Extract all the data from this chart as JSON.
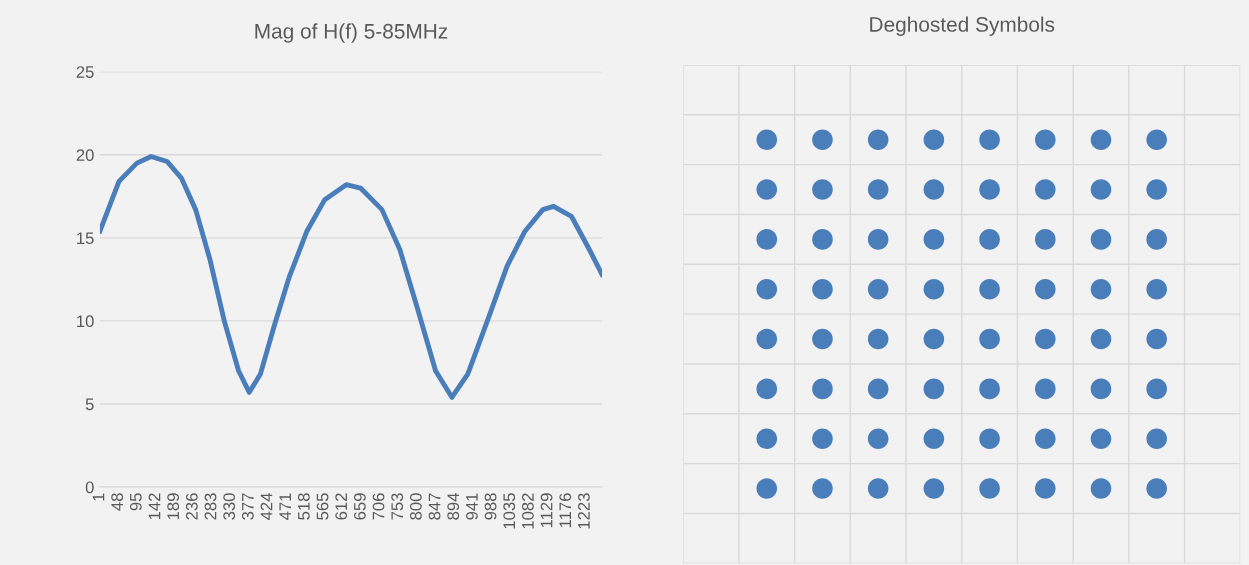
{
  "chart_data": [
    {
      "type": "line",
      "title": "Mag of H(f) 5-85MHz",
      "xlim": [
        1,
        1265
      ],
      "xticks": [
        1,
        48,
        95,
        142,
        189,
        236,
        283,
        330,
        377,
        424,
        471,
        518,
        565,
        612,
        659,
        706,
        753,
        800,
        847,
        894,
        941,
        988,
        1035,
        1082,
        1129,
        1176,
        1223
      ],
      "ylim": [
        0,
        25
      ],
      "yticks": [
        0,
        5,
        10,
        15,
        20,
        25
      ],
      "grid": "y",
      "series": [
        {
          "color": "#4a7ebb",
          "x": [
            1,
            49,
            94,
            130,
            170,
            206,
            242,
            278,
            314,
            350,
            377,
            405,
            441,
            477,
            522,
            567,
            621,
            657,
            711,
            756,
            801,
            846,
            887,
            927,
            981,
            1026,
            1071,
            1116,
            1143,
            1188,
            1233,
            1265
          ],
          "values": [
            15.4,
            18.4,
            19.5,
            19.9,
            19.6,
            18.6,
            16.7,
            13.7,
            10.0,
            7.0,
            5.7,
            6.8,
            9.8,
            12.6,
            15.4,
            17.3,
            18.2,
            18.0,
            16.7,
            14.3,
            10.7,
            7.0,
            5.4,
            6.8,
            10.3,
            13.3,
            15.4,
            16.7,
            16.9,
            16.3,
            14.3,
            12.8
          ]
        }
      ]
    },
    {
      "type": "other",
      "title": "Deghosted Symbols"
    }
  ]
}
